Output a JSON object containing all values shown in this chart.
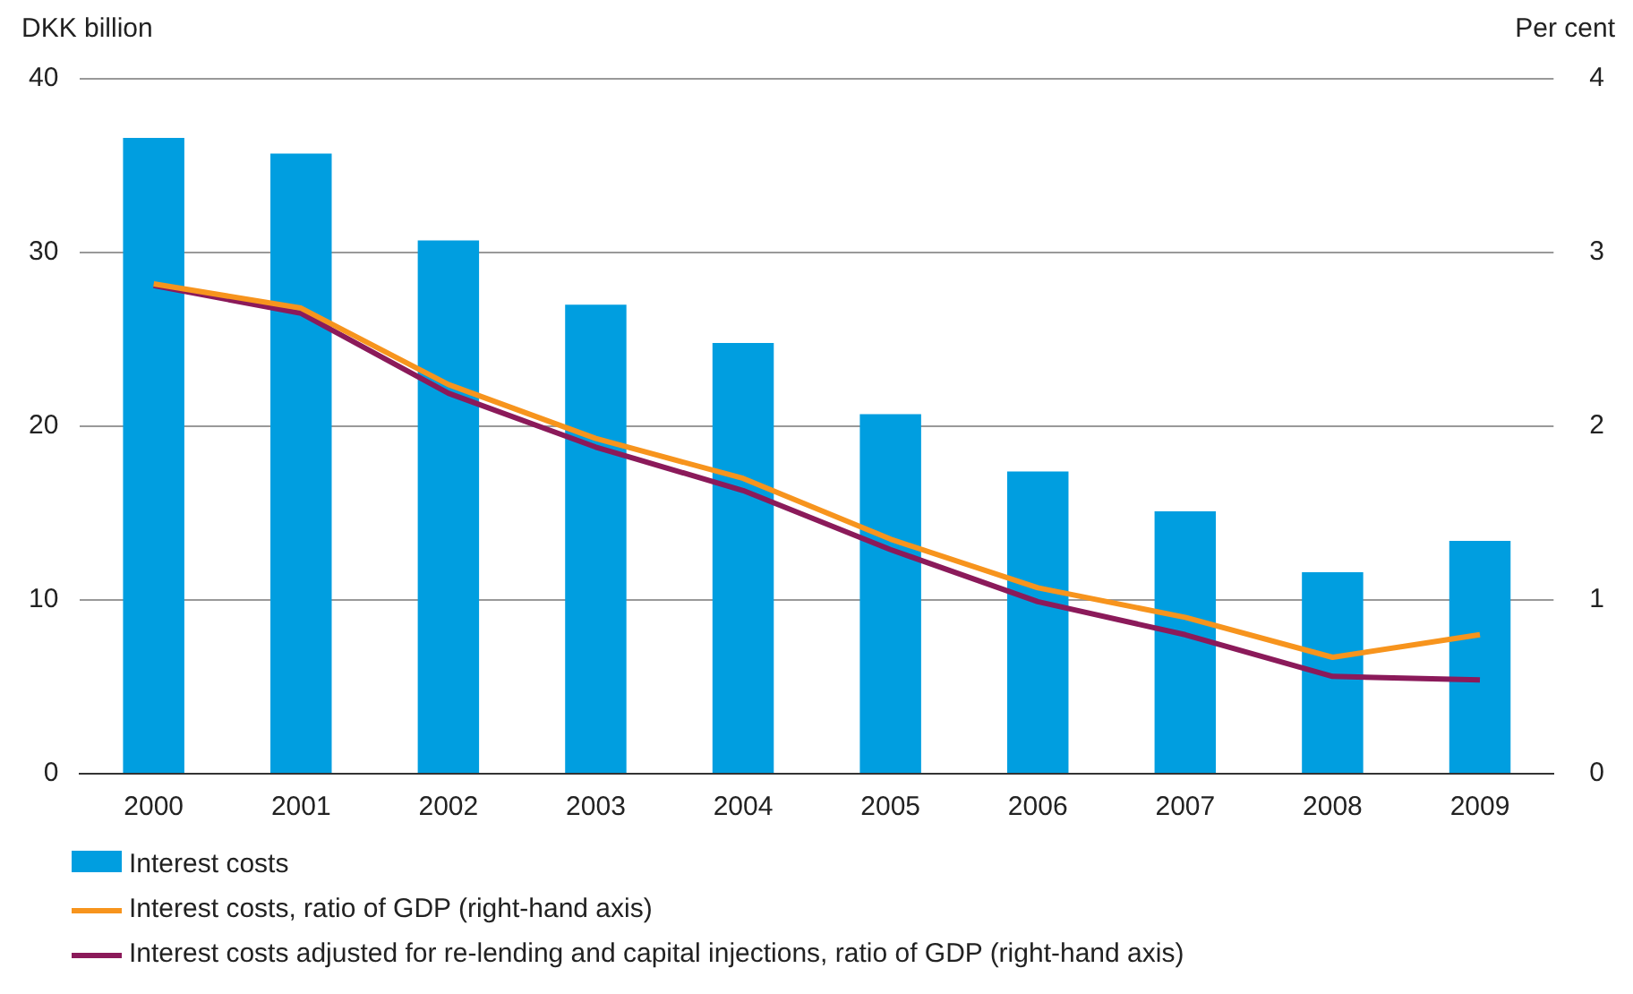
{
  "chart_data": {
    "type": "bar",
    "ylabel": "DKK billion",
    "y2label": "Per cent",
    "categories": [
      "2000",
      "2001",
      "2002",
      "2003",
      "2004",
      "2005",
      "2006",
      "2007",
      "2008",
      "2009"
    ],
    "series": [
      {
        "name": "Interest costs",
        "color": "#009ee0",
        "values": [
          36.6,
          35.7,
          30.7,
          27.0,
          24.8,
          20.7,
          17.4,
          15.1,
          11.6,
          13.4
        ]
      },
      {
        "name": "Interest costs, ratio of GDP (right-hand axis)",
        "type": "line",
        "axis": "y2",
        "color": "#f7941d",
        "values": [
          2.82,
          2.68,
          2.24,
          1.93,
          1.7,
          1.35,
          1.07,
          0.9,
          0.67,
          0.8
        ]
      },
      {
        "name": "Interest costs adjusted for re-lending and capital injections, ratio of GDP (right-hand axis)",
        "type": "line",
        "axis": "y2",
        "color": "#8b1a5a",
        "values": [
          2.81,
          2.65,
          2.19,
          1.88,
          1.63,
          1.29,
          0.99,
          0.8,
          0.56,
          0.54
        ]
      }
    ],
    "ylim": [
      0,
      40
    ],
    "yticks": [
      0,
      10,
      20,
      30,
      40
    ],
    "y2lim": [
      0,
      4
    ],
    "y2ticks": [
      0,
      1,
      2,
      3,
      4
    ],
    "grid": "y",
    "legend": "bottom",
    "marker": "none",
    "line_style": "solid"
  }
}
